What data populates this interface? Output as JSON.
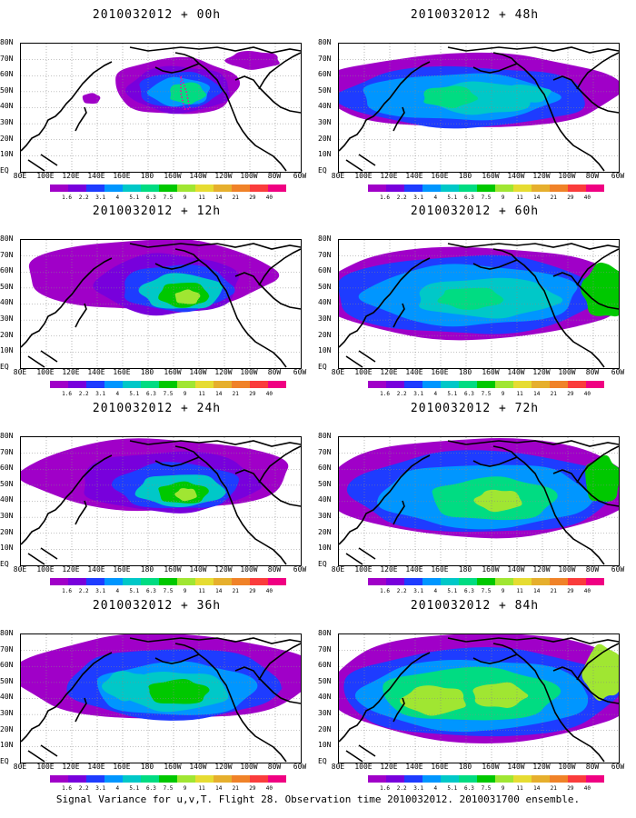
{
  "panels": [
    {
      "title": "2010032012 + 00h"
    },
    {
      "title": "2010032012 + 48h"
    },
    {
      "title": "2010032012 + 12h"
    },
    {
      "title": "2010032012 + 60h"
    },
    {
      "title": "2010032012 + 24h"
    },
    {
      "title": "2010032012 + 72h"
    },
    {
      "title": "2010032012 + 36h"
    },
    {
      "title": "2010032012 + 84h"
    }
  ],
  "lat_labels": [
    "80N",
    "70N",
    "60N",
    "50N",
    "40N",
    "30N",
    "20N",
    "10N",
    "EQ"
  ],
  "lon_labels": [
    "80E",
    "100E",
    "120E",
    "140E",
    "160E",
    "180",
    "160W",
    "140W",
    "120W",
    "100W",
    "80W",
    "60W"
  ],
  "colorbar": {
    "labels": [
      "1.6",
      "2.2",
      "3.1",
      "4",
      "5.1",
      "6.3",
      "7.5",
      "9",
      "11",
      "14",
      "21",
      "29",
      "40"
    ],
    "colors": [
      "#a000c8",
      "#7800dc",
      "#1e3cff",
      "#0096ff",
      "#00c8c8",
      "#00dc82",
      "#00c800",
      "#a0e632",
      "#e6dc32",
      "#e6af2d",
      "#f08228",
      "#fa3c3c",
      "#f00082"
    ]
  },
  "footer": "Signal Variance for u,v,T. Flight 28. Observation time 2010032012. 2010031700 ensemble."
}
